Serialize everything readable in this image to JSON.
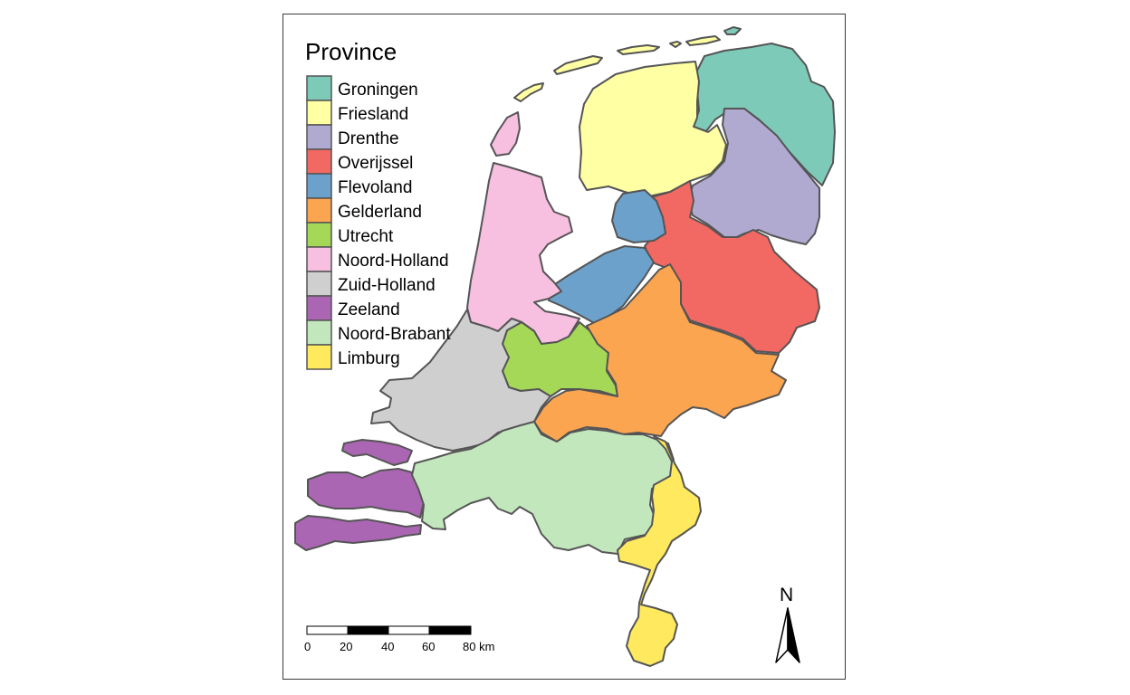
{
  "map": {
    "legend": {
      "title": "Province",
      "items": [
        {
          "key": "groningen",
          "label": "Groningen",
          "color": "#7ecab9"
        },
        {
          "key": "friesland",
          "label": "Friesland",
          "color": "#ffffa3"
        },
        {
          "key": "drenthe",
          "label": "Drenthe",
          "color": "#b0aad1"
        },
        {
          "key": "overijssel",
          "label": "Overijssel",
          "color": "#f26862"
        },
        {
          "key": "flevoland",
          "label": "Flevoland",
          "color": "#6ba1cb"
        },
        {
          "key": "gelderland",
          "label": "Gelderland",
          "color": "#fba550"
        },
        {
          "key": "utrecht",
          "label": "Utrecht",
          "color": "#a6d857"
        },
        {
          "key": "noord-holland",
          "label": "Noord-Holland",
          "color": "#f7bfe0"
        },
        {
          "key": "zuid-holland",
          "label": "Zuid-Holland",
          "color": "#cfcfcf"
        },
        {
          "key": "zeeland",
          "label": "Zeeland",
          "color": "#aa66b3"
        },
        {
          "key": "noord-brabant",
          "label": "Noord-Brabant",
          "color": "#c3e7bd"
        },
        {
          "key": "limburg",
          "label": "Limburg",
          "color": "#ffe95e"
        }
      ]
    },
    "scale_bar": {
      "ticks": [
        "0",
        "20",
        "40",
        "60",
        "80 km"
      ]
    },
    "north_arrow": {
      "label": "N"
    },
    "border_color": "#555555"
  }
}
